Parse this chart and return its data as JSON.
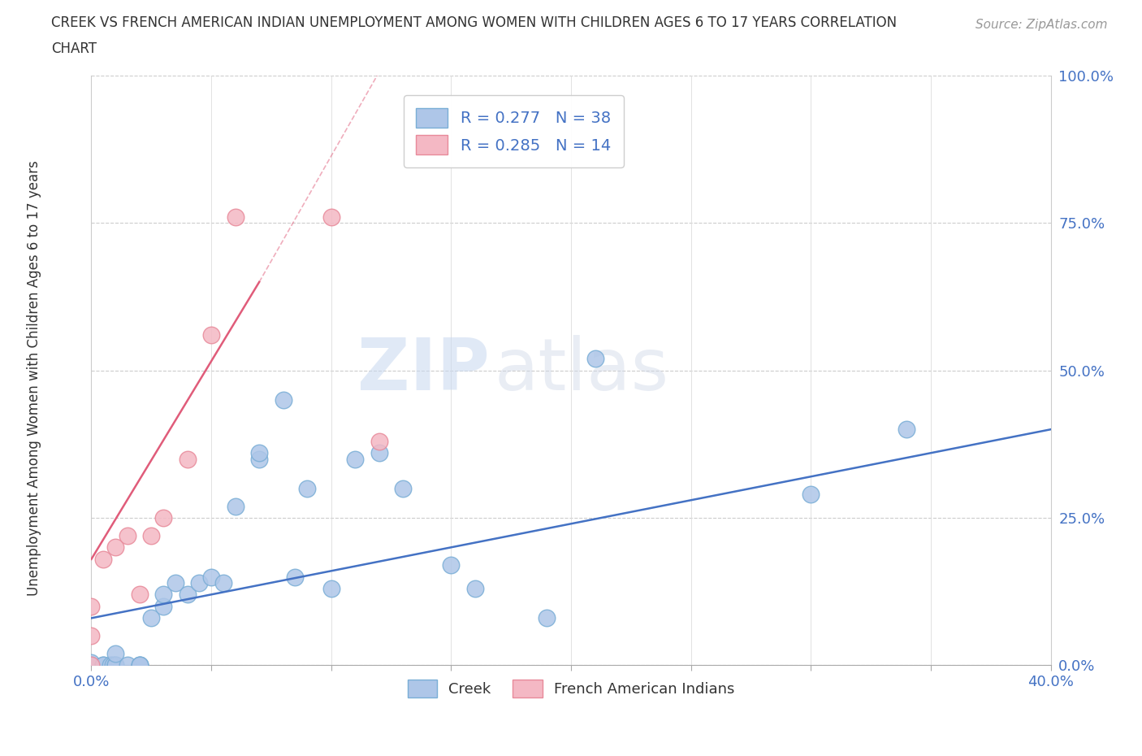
{
  "title_line1": "CREEK VS FRENCH AMERICAN INDIAN UNEMPLOYMENT AMONG WOMEN WITH CHILDREN AGES 6 TO 17 YEARS CORRELATION",
  "title_line2": "CHART",
  "source": "Source: ZipAtlas.com",
  "ylabel": "Unemployment Among Women with Children Ages 6 to 17 years",
  "xlim": [
    0.0,
    0.4
  ],
  "ylim": [
    0.0,
    1.0
  ],
  "xticks": [
    0.0,
    0.05,
    0.1,
    0.15,
    0.2,
    0.25,
    0.3,
    0.35,
    0.4
  ],
  "xticklabels_show": [
    "0.0%",
    "",
    "",
    "",
    "",
    "",
    "",
    "",
    "40.0%"
  ],
  "yticks": [
    0.0,
    0.25,
    0.5,
    0.75,
    1.0
  ],
  "yticklabels": [
    "0.0%",
    "25.0%",
    "50.0%",
    "75.0%",
    "100.0%"
  ],
  "creek_color": "#aec6e8",
  "creek_edge_color": "#7aaed6",
  "french_color": "#f4b8c4",
  "french_edge_color": "#e88a9a",
  "creek_line_color": "#4472c4",
  "french_line_color": "#e05c7a",
  "creek_R": 0.277,
  "creek_N": 38,
  "french_R": 0.285,
  "french_N": 14,
  "creek_x": [
    0.0,
    0.0,
    0.0,
    0.005,
    0.005,
    0.008,
    0.009,
    0.01,
    0.01,
    0.01,
    0.015,
    0.02,
    0.02,
    0.02,
    0.025,
    0.03,
    0.03,
    0.035,
    0.04,
    0.045,
    0.05,
    0.055,
    0.06,
    0.07,
    0.07,
    0.08,
    0.085,
    0.09,
    0.1,
    0.11,
    0.12,
    0.13,
    0.15,
    0.16,
    0.19,
    0.21,
    0.3,
    0.34
  ],
  "creek_y": [
    0.0,
    0.0,
    0.005,
    0.0,
    0.0,
    0.0,
    0.0,
    0.0,
    0.0,
    0.02,
    0.0,
    0.0,
    0.0,
    0.0,
    0.08,
    0.1,
    0.12,
    0.14,
    0.12,
    0.14,
    0.15,
    0.14,
    0.27,
    0.35,
    0.36,
    0.45,
    0.15,
    0.3,
    0.13,
    0.35,
    0.36,
    0.3,
    0.17,
    0.13,
    0.08,
    0.52,
    0.29,
    0.4
  ],
  "french_x": [
    0.0,
    0.0,
    0.0,
    0.005,
    0.01,
    0.015,
    0.02,
    0.025,
    0.03,
    0.04,
    0.05,
    0.06,
    0.1,
    0.12
  ],
  "french_y": [
    0.0,
    0.05,
    0.1,
    0.18,
    0.2,
    0.22,
    0.12,
    0.22,
    0.25,
    0.35,
    0.56,
    0.76,
    0.76,
    0.38
  ],
  "french_regline_x": [
    0.0,
    0.07
  ],
  "french_regline_y": [
    0.18,
    0.65
  ],
  "creek_regline_x": [
    0.0,
    0.4
  ],
  "creek_regline_y": [
    0.08,
    0.4
  ],
  "watermark_zip": "ZIP",
  "watermark_atlas": "atlas",
  "background_color": "#ffffff",
  "legend_creek_label": "Creek",
  "legend_french_label": "French American Indians",
  "tick_color": "#4472c4"
}
